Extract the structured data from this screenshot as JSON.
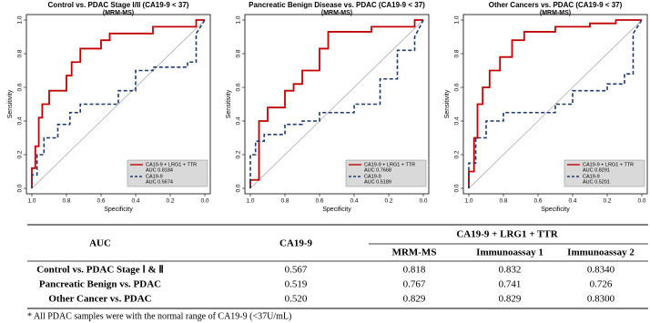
{
  "chart_data": [
    {
      "type": "line",
      "title": "Control vs. PDAC Stage I/II (CA19-9 < 37)",
      "subtitle": "(MRM-MS)",
      "x_label": "Specificity",
      "y_label": "Sensitivity",
      "xlim": [
        1,
        0
      ],
      "ylim": [
        0,
        1
      ],
      "xticks": [
        {
          "value": 1,
          "label": "1.0"
        },
        0.8,
        0.6,
        0.4,
        0.2,
        {
          "value": 0,
          "label": "0.0"
        }
      ],
      "yticks": [
        {
          "value": 0,
          "label": "0.0"
        },
        0.2,
        0.4,
        0.6,
        0.8,
        {
          "value": 1,
          "label": "1.0"
        }
      ],
      "series": [
        {
          "name": "CA19-9 + LRG1 + TTR",
          "auc_label": "AUC 0.8184",
          "color": "#c00000",
          "style": "solid",
          "x": [
            1,
            1,
            0.98,
            0.98,
            0.96,
            0.96,
            0.94,
            0.94,
            0.9,
            0.9,
            0.8,
            0.8,
            0.77,
            0.77,
            0.72,
            0.72,
            0.6,
            0.6,
            0.55,
            0.55,
            0.3,
            0.3,
            0.05,
            0.05,
            0
          ],
          "values": [
            0,
            0.12,
            0.12,
            0.25,
            0.25,
            0.42,
            0.42,
            0.5,
            0.5,
            0.58,
            0.58,
            0.67,
            0.67,
            0.75,
            0.75,
            0.83,
            0.83,
            0.88,
            0.88,
            0.92,
            0.92,
            0.96,
            0.96,
            1,
            1
          ]
        },
        {
          "name": "CA19-9",
          "auc_label": "AUC 0.5674",
          "color": "#1f3a6e",
          "style": "dashed",
          "x": [
            1,
            1,
            0.97,
            0.97,
            0.93,
            0.93,
            0.85,
            0.85,
            0.78,
            0.78,
            0.72,
            0.72,
            0.5,
            0.5,
            0.4,
            0.4,
            0.3,
            0.3,
            0.1,
            0.1,
            0.05,
            0.05,
            0
          ],
          "values": [
            0,
            0.08,
            0.08,
            0.2,
            0.2,
            0.3,
            0.3,
            0.38,
            0.38,
            0.45,
            0.45,
            0.5,
            0.5,
            0.58,
            0.58,
            0.7,
            0.7,
            0.72,
            0.72,
            0.75,
            0.75,
            0.92,
            1
          ]
        }
      ]
    },
    {
      "type": "line",
      "title": "Pancreatic Benign Disease vs. PDAC (CA19-9 < 37)",
      "subtitle": "(MRM-MS)",
      "x_label": "Specificity",
      "y_label": "Sensitivity",
      "xlim": [
        1,
        0
      ],
      "ylim": [
        0,
        1
      ],
      "xticks": [
        {
          "value": 1,
          "label": "1.0"
        },
        0.8,
        0.6,
        0.4,
        0.2,
        {
          "value": 0,
          "label": "0.0"
        }
      ],
      "yticks": [
        {
          "value": 0,
          "label": "0.0"
        },
        0.2,
        0.4,
        0.6,
        0.8,
        {
          "value": 1,
          "label": "1.0"
        }
      ],
      "series": [
        {
          "name": "CA19-9 + LRG1 + TTR",
          "auc_label": "AUC 0.7668",
          "color": "#c00000",
          "style": "solid",
          "x": [
            1,
            1,
            0.95,
            0.95,
            0.9,
            0.9,
            0.8,
            0.8,
            0.75,
            0.75,
            0.7,
            0.7,
            0.6,
            0.6,
            0.55,
            0.55,
            0.3,
            0.3,
            0.2,
            0.2,
            0.05,
            0.05,
            0
          ],
          "values": [
            0,
            0.05,
            0.05,
            0.4,
            0.4,
            0.48,
            0.48,
            0.58,
            0.58,
            0.62,
            0.62,
            0.7,
            0.7,
            0.83,
            0.83,
            0.93,
            0.93,
            0.96,
            0.96,
            0.96,
            0.96,
            1,
            1
          ]
        },
        {
          "name": "CA19-9",
          "auc_label": "AUC 0.5189",
          "color": "#1f3a6e",
          "style": "dashed",
          "x": [
            1,
            1,
            0.97,
            0.97,
            0.92,
            0.92,
            0.8,
            0.8,
            0.7,
            0.7,
            0.6,
            0.6,
            0.4,
            0.4,
            0.25,
            0.25,
            0.15,
            0.15,
            0.05,
            0.05,
            0
          ],
          "values": [
            0,
            0.2,
            0.2,
            0.28,
            0.28,
            0.32,
            0.32,
            0.38,
            0.38,
            0.4,
            0.4,
            0.45,
            0.45,
            0.5,
            0.5,
            0.65,
            0.65,
            0.82,
            0.82,
            0.9,
            1
          ]
        }
      ]
    },
    {
      "type": "line",
      "title": "Other Cancers vs. PDAC (CA19-9 < 37)",
      "subtitle": "(MRM-MS)",
      "x_label": "Specificity",
      "y_label": "Sensitivity",
      "xlim": [
        1,
        0
      ],
      "ylim": [
        0,
        1
      ],
      "xticks": [
        {
          "value": 1,
          "label": "1.0"
        },
        0.8,
        0.6,
        0.4,
        0.2,
        {
          "value": 0,
          "label": "0.0"
        }
      ],
      "yticks": [
        {
          "value": 0,
          "label": "0.0"
        },
        0.2,
        0.4,
        0.6,
        0.8,
        {
          "value": 1,
          "label": "1.0"
        }
      ],
      "series": [
        {
          "name": "CA19-9 + LRG1 + TTR",
          "auc_label": "AUC 0.8291",
          "color": "#c00000",
          "style": "solid",
          "x": [
            1,
            1,
            0.97,
            0.97,
            0.95,
            0.95,
            0.92,
            0.92,
            0.88,
            0.88,
            0.82,
            0.82,
            0.75,
            0.75,
            0.68,
            0.68,
            0.5,
            0.5,
            0.3,
            0.3,
            0.15,
            0.15,
            0
          ],
          "values": [
            0,
            0.1,
            0.1,
            0.3,
            0.3,
            0.5,
            0.5,
            0.6,
            0.6,
            0.7,
            0.7,
            0.78,
            0.78,
            0.88,
            0.88,
            0.93,
            0.93,
            0.96,
            0.96,
            0.98,
            0.98,
            1,
            1
          ]
        },
        {
          "name": "CA19-9",
          "auc_label": "AUC 0.5201",
          "color": "#1f3a6e",
          "style": "dashed",
          "x": [
            1,
            1,
            0.96,
            0.96,
            0.9,
            0.9,
            0.8,
            0.8,
            0.5,
            0.5,
            0.4,
            0.4,
            0.2,
            0.2,
            0.1,
            0.1,
            0.05,
            0.05,
            0
          ],
          "values": [
            0,
            0.15,
            0.15,
            0.3,
            0.3,
            0.4,
            0.4,
            0.45,
            0.45,
            0.5,
            0.5,
            0.58,
            0.58,
            0.62,
            0.62,
            0.68,
            0.68,
            0.92,
            1
          ]
        }
      ]
    }
  ],
  "table": {
    "header": [
      "AUC",
      "CA19-9",
      "CA19-9 + LRG1 + TTR"
    ],
    "subheader": [
      "MRM-MS",
      "Immunoassay 1",
      "Immunoassay 2"
    ],
    "rows": [
      [
        "Control vs. PDAC Stage Ⅰ & Ⅱ",
        "0.567",
        "0.818",
        "0.832",
        "0.8340"
      ],
      [
        "Pancreatic Benign vs. PDAC",
        "0.519",
        "0.767",
        "0.741",
        "0.726"
      ],
      [
        "Other Cancer vs. PDAC",
        "0.520",
        "0.829",
        "0.829",
        "0.8300"
      ]
    ]
  },
  "footnote": "* All PDAC samples were with the normal range of CA19-9 (<37U/mL)"
}
